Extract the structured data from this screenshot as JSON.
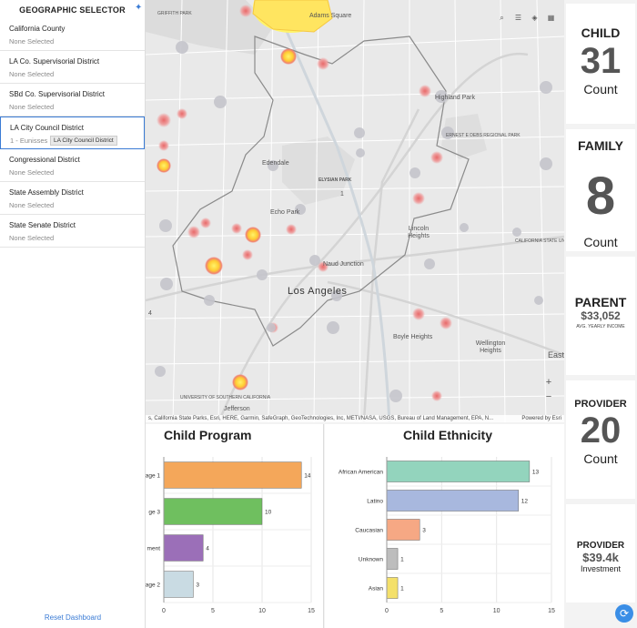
{
  "selector": {
    "title": "GEOGRAPHIC SELECTOR",
    "items": [
      {
        "label": "California County",
        "value": "None Selected"
      },
      {
        "label": "LA Co. Supervisorial District",
        "value": "None Selected"
      },
      {
        "label": "SBd Co. Supervisorial District",
        "value": "None Selected"
      },
      {
        "label": "LA City Council District",
        "value": "1 - Eunisses H"
      },
      {
        "label": "Congressional District",
        "value": "None Selected"
      },
      {
        "label": "State Assembly District",
        "value": "None Selected"
      },
      {
        "label": "State Senate District",
        "value": "None Selected"
      }
    ],
    "tooltip": "LA City Council District",
    "reset": "Reset Dashboard"
  },
  "map": {
    "labels": {
      "adams_square": "Adams Square",
      "griffith_park": "GRIFFITH PARK",
      "highland_park": "Highland Park",
      "ernest_debs": "ERNEST E DEBS REGIONAL PARK",
      "edendale": "Edendale",
      "elysian_park": "ELYSIAN PARK",
      "district_num": "1",
      "echo_park": "Echo Park",
      "lincoln_heights": "Lincoln Heights",
      "csula": "CALIFORNIA STATE UNIVERSITY LOS ANGELES",
      "naud_junction": "Naud Junction",
      "los_angeles": "Los Angeles",
      "boyle_heights": "Boyle Heights",
      "wellington": "Wellington Heights",
      "east": "East",
      "usc": "UNIVERSITY OF SOUTHERN CALIFORNIA",
      "jefferson": "Jefferson",
      "four": "4"
    },
    "zoom_in": "+",
    "zoom_out": "−",
    "attribution": "s, California State Parks, Esri, HERE, Garmin, SafeGraph, GeoTechnologies, Inc, METI/NASA, USGS, Bureau of Land Management, EPA, N...",
    "powered": "Powered by Esri",
    "icons": [
      "search-icon",
      "legend-icon",
      "layers-icon",
      "basemap-icon"
    ]
  },
  "chart_data": [
    {
      "type": "bar",
      "title": "Child Program",
      "orientation": "horizontal",
      "categories": [
        "age 1",
        "ge 3",
        "ment",
        "age 2"
      ],
      "values": [
        14,
        10,
        4,
        3
      ],
      "colors": [
        "#f4a75a",
        "#6fbf5f",
        "#9b6fb8",
        "#c9dbe3"
      ],
      "xlim": [
        0,
        15
      ],
      "ticks": [
        0,
        5,
        10,
        15
      ]
    },
    {
      "type": "bar",
      "title": "Child Ethnicity",
      "orientation": "horizontal",
      "categories": [
        "African American",
        "Latino",
        "Caucasian",
        "Unknown",
        "Asian"
      ],
      "values": [
        13,
        12,
        3,
        1,
        1
      ],
      "colors": [
        "#93d4bd",
        "#a8b8de",
        "#f6a884",
        "#bdbdbd",
        "#f4e06a"
      ],
      "xlim": [
        0,
        15
      ],
      "ticks": [
        0,
        5,
        10,
        15
      ]
    }
  ],
  "stats": {
    "child": {
      "title": "CHILD",
      "value": "31",
      "unit": "Count"
    },
    "family": {
      "title": "FAMILY",
      "value": "8",
      "unit": "Count"
    },
    "parent": {
      "title": "PARENT",
      "value": "$33,052",
      "unit": "AVG. YEARLY INCOME"
    },
    "provider_count": {
      "title": "PROVIDER",
      "value": "20",
      "unit": "Count"
    },
    "provider_inv": {
      "title": "PROVIDER",
      "value": "$39.4k",
      "unit": "Investment"
    }
  }
}
